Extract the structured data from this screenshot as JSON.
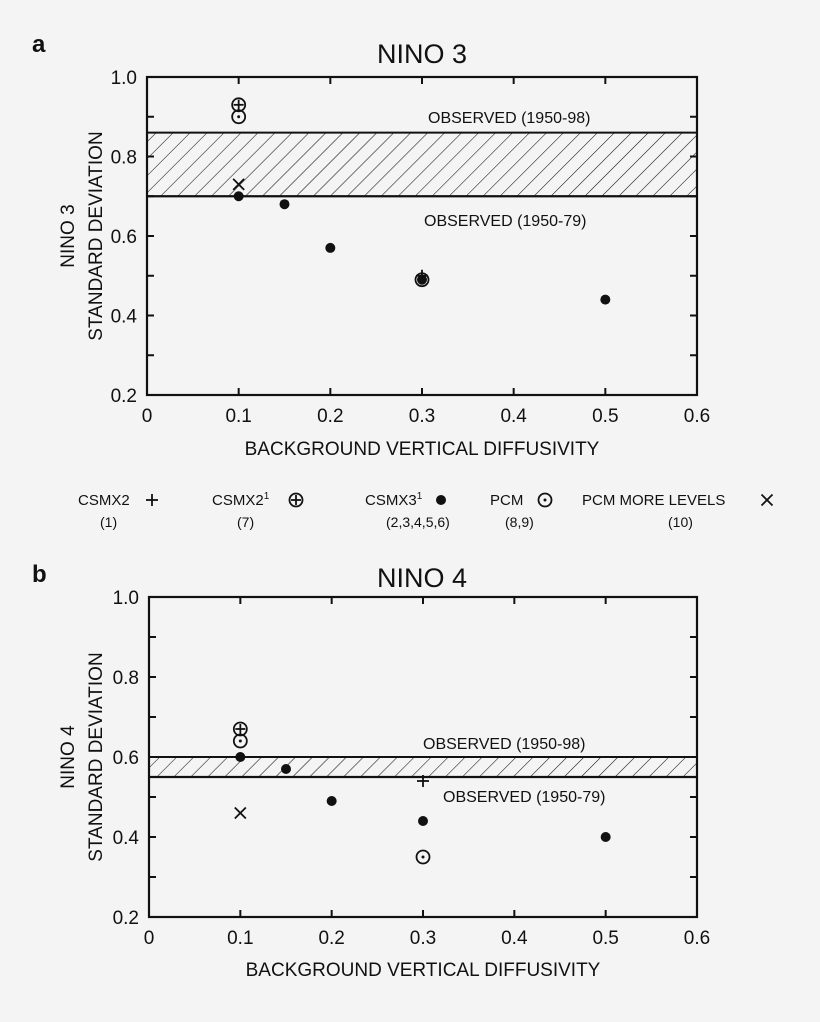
{
  "legend": [
    {
      "label": "CSMX2",
      "sup": "",
      "runs": "(1)",
      "marker": "plus"
    },
    {
      "label": "CSMX2",
      "sup": "1",
      "runs": "(7)",
      "marker": "circle-plus"
    },
    {
      "label": "CSMX3",
      "sup": "1",
      "runs": "(2,3,4,5,6)",
      "marker": "dot"
    },
    {
      "label": "PCM",
      "sup": "",
      "runs": "(8,9)",
      "marker": "circle-dot"
    },
    {
      "label": "PCM MORE LEVELS",
      "sup": "",
      "runs": "(10)",
      "marker": "cross"
    }
  ],
  "chart_data": [
    {
      "type": "scatter",
      "panel_label": "a",
      "title": "NINO 3",
      "xlabel": "BACKGROUND VERTICAL DIFFUSIVITY",
      "ylabel": [
        "NINO 3",
        "STANDARD DEVIATION"
      ],
      "xlim": [
        0,
        0.6
      ],
      "ylim": [
        0.2,
        1.0
      ],
      "xticks": [
        "0",
        "0.1",
        "0.2",
        "0.3",
        "0.4",
        "0.5",
        "0.6"
      ],
      "yticks": [
        "0.2",
        "0.4",
        "0.6",
        "0.8",
        "1.0"
      ],
      "grid": false,
      "observed_band": {
        "upper": 0.86,
        "lower": 0.7,
        "upper_label": "OBSERVED (1950-98)",
        "lower_label": "OBSERVED (1950-79)"
      },
      "series": [
        {
          "name": "CSMX2",
          "marker": "plus",
          "points": [
            [
              0.3,
              0.5
            ]
          ]
        },
        {
          "name": "CSMX2¹",
          "marker": "circle-plus",
          "points": [
            [
              0.1,
              0.93
            ]
          ]
        },
        {
          "name": "CSMX3¹",
          "marker": "dot",
          "points": [
            [
              0.1,
              0.7
            ],
            [
              0.15,
              0.68
            ],
            [
              0.2,
              0.57
            ],
            [
              0.3,
              0.49
            ],
            [
              0.5,
              0.44
            ]
          ]
        },
        {
          "name": "PCM",
          "marker": "circle-dot",
          "points": [
            [
              0.1,
              0.9
            ],
            [
              0.3,
              0.49
            ]
          ]
        },
        {
          "name": "PCM MORE LEVELS",
          "marker": "cross",
          "points": [
            [
              0.1,
              0.73
            ]
          ]
        }
      ]
    },
    {
      "type": "scatter",
      "panel_label": "b",
      "title": "NINO 4",
      "xlabel": "BACKGROUND VERTICAL DIFFUSIVITY",
      "ylabel": [
        "NINO 4",
        "STANDARD DEVIATION"
      ],
      "xlim": [
        0,
        0.6
      ],
      "ylim": [
        0.2,
        1.0
      ],
      "xticks": [
        "0",
        "0.1",
        "0.2",
        "0.3",
        "0.4",
        "0.5",
        "0.6"
      ],
      "yticks": [
        "0.2",
        "0.4",
        "0.6",
        "0.8",
        "1.0"
      ],
      "grid": false,
      "observed_band": {
        "upper": 0.6,
        "lower": 0.55,
        "upper_label": "OBSERVED (1950-98)",
        "lower_label": "OBSERVED (1950-79)"
      },
      "series": [
        {
          "name": "CSMX2",
          "marker": "plus",
          "points": [
            [
              0.3,
              0.54
            ]
          ]
        },
        {
          "name": "CSMX2¹",
          "marker": "circle-plus",
          "points": [
            [
              0.1,
              0.67
            ]
          ]
        },
        {
          "name": "CSMX3¹",
          "marker": "dot",
          "points": [
            [
              0.1,
              0.6
            ],
            [
              0.15,
              0.57
            ],
            [
              0.2,
              0.49
            ],
            [
              0.3,
              0.44
            ],
            [
              0.5,
              0.4
            ]
          ]
        },
        {
          "name": "PCM",
          "marker": "circle-dot",
          "points": [
            [
              0.1,
              0.64
            ],
            [
              0.3,
              0.35
            ]
          ]
        },
        {
          "name": "PCM MORE LEVELS",
          "marker": "cross",
          "points": [
            [
              0.1,
              0.46
            ]
          ]
        }
      ]
    }
  ]
}
